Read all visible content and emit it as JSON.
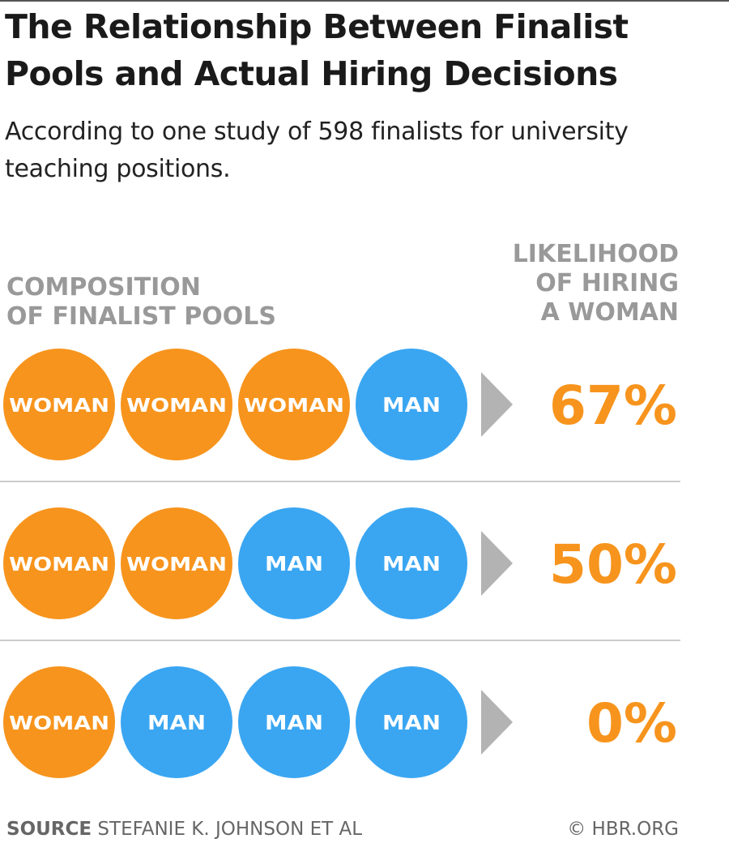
{
  "title": "The Relationship Between Finalist Pools and Actual Hiring Decisions",
  "subtitle": "According to one study of 598 finalists for university teaching positions.",
  "colors": {
    "woman": "#f7941d",
    "man": "#3aa6f2",
    "arrow": "#b3b3b3",
    "percent": "#f7941d",
    "divider": "#bbbbbb"
  },
  "chart_data": {
    "type": "table",
    "column_headers": {
      "left": [
        "COMPOSITION",
        "OF FINALIST POOLS"
      ],
      "right": [
        "LIKELIHOOD",
        "OF HIRING",
        "A WOMAN"
      ]
    },
    "rows": [
      {
        "pool": [
          "WOMAN",
          "WOMAN",
          "WOMAN",
          "MAN"
        ],
        "likelihood": 67,
        "label": "67%"
      },
      {
        "pool": [
          "WOMAN",
          "WOMAN",
          "MAN",
          "MAN"
        ],
        "likelihood": 50,
        "label": "50%"
      },
      {
        "pool": [
          "WOMAN",
          "MAN",
          "MAN",
          "MAN"
        ],
        "likelihood": 0,
        "label": "0%"
      }
    ]
  },
  "source": {
    "label": "SOURCE",
    "text": "STEFANIE K. JOHNSON ET AL"
  },
  "credit": "© HBR.ORG"
}
